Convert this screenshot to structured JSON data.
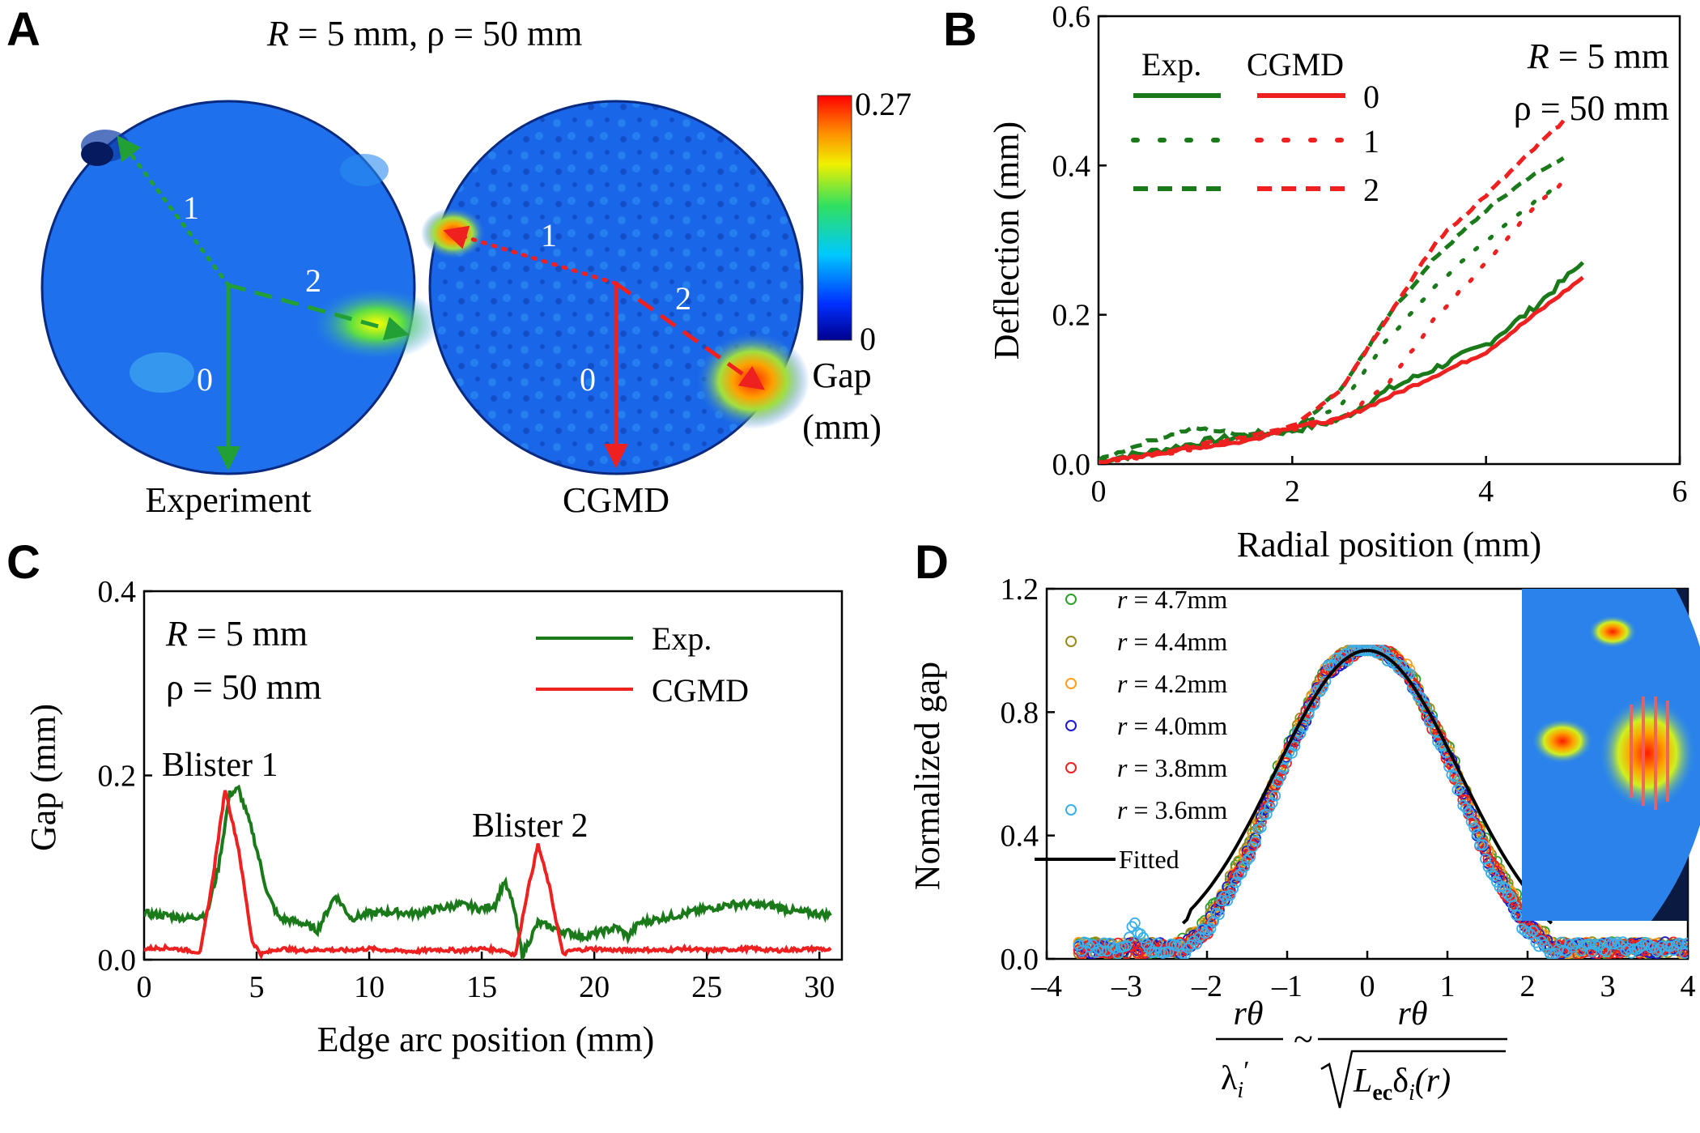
{
  "panel_A": {
    "letter": "A",
    "title": "R = 5 mm, ρ = 50 mm",
    "title_R": "R",
    "title_rest1": " = 5 mm, ",
    "title_rho": "ρ",
    "title_rest2": " = 50 mm",
    "left_caption": "Experiment",
    "right_caption": "CGMD",
    "path_labels": [
      "0",
      "1",
      "2"
    ],
    "colorbar": {
      "max": "0.27",
      "min": "0",
      "label_line1": "Gap",
      "label_line2": "(mm)"
    },
    "colors": {
      "exp": "#1a7a1a",
      "cgmd": "#ee2020"
    }
  },
  "chart_data": [
    {
      "panel": "B",
      "type": "line",
      "xlabel": "Radial position (mm)",
      "ylabel": "Deflection (mm)",
      "xlim": [
        0,
        6
      ],
      "ylim": [
        0,
        0.6
      ],
      "xticks": [
        "0",
        "2",
        "4",
        "6"
      ],
      "yticks": [
        "0.0",
        "0.2",
        "0.4",
        "0.6"
      ],
      "legend_header": [
        "Exp.",
        "CGMD"
      ],
      "legend_index": [
        "0",
        "1",
        "2"
      ],
      "annotation": [
        "R = 5 mm",
        "ρ = 50 mm"
      ],
      "series": [
        {
          "name": "Exp. 0",
          "color": "#1a7a1a",
          "dash": "solid",
          "x": [
            0,
            0.5,
            1.0,
            1.5,
            2.0,
            2.5,
            3.0,
            3.5,
            4.0,
            4.5,
            5.0
          ],
          "y": [
            0.005,
            0.015,
            0.028,
            0.038,
            0.045,
            0.06,
            0.1,
            0.13,
            0.16,
            0.21,
            0.27
          ]
        },
        {
          "name": "Exp. 1",
          "color": "#1a7a1a",
          "dash": "dot",
          "x": [
            0,
            0.5,
            1.0,
            1.5,
            2.0,
            2.5,
            3.0,
            3.5,
            4.0,
            4.4,
            4.7
          ],
          "y": [
            0.005,
            0.015,
            0.025,
            0.035,
            0.045,
            0.08,
            0.17,
            0.24,
            0.3,
            0.34,
            0.37
          ]
        },
        {
          "name": "Exp. 2",
          "color": "#1a7a1a",
          "dash": "dash",
          "x": [
            0,
            0.5,
            1.0,
            1.5,
            2.0,
            2.5,
            3.0,
            3.5,
            4.0,
            4.4,
            4.8
          ],
          "y": [
            0.005,
            0.03,
            0.048,
            0.04,
            0.045,
            0.1,
            0.2,
            0.28,
            0.34,
            0.38,
            0.41
          ]
        },
        {
          "name": "CGMD 0",
          "color": "#ee2020",
          "dash": "solid",
          "x": [
            0,
            0.5,
            1.0,
            1.5,
            2.0,
            2.5,
            3.0,
            3.5,
            4.0,
            4.5,
            5.0
          ],
          "y": [
            0.002,
            0.012,
            0.022,
            0.03,
            0.05,
            0.06,
            0.09,
            0.12,
            0.15,
            0.2,
            0.25
          ]
        },
        {
          "name": "CGMD 1",
          "color": "#ee2020",
          "dash": "dot",
          "x": [
            0,
            0.5,
            1.0,
            1.5,
            2.0,
            2.5,
            3.0,
            3.5,
            4.0,
            4.4,
            4.8
          ],
          "y": [
            0.002,
            0.01,
            0.02,
            0.03,
            0.045,
            0.06,
            0.11,
            0.2,
            0.27,
            0.33,
            0.38
          ]
        },
        {
          "name": "CGMD 2",
          "color": "#ee2020",
          "dash": "dash",
          "x": [
            0,
            0.5,
            1.0,
            1.5,
            2.0,
            2.5,
            3.0,
            3.5,
            4.0,
            4.4,
            4.8
          ],
          "y": [
            0.002,
            0.012,
            0.025,
            0.035,
            0.05,
            0.1,
            0.2,
            0.3,
            0.36,
            0.41,
            0.46
          ]
        }
      ]
    },
    {
      "panel": "C",
      "type": "line",
      "xlabel": "Edge arc position (mm)",
      "ylabel": "Gap (mm)",
      "xlim": [
        0,
        31
      ],
      "ylim": [
        0,
        0.4
      ],
      "xticks": [
        "0",
        "5",
        "10",
        "15",
        "20",
        "25",
        "30"
      ],
      "yticks": [
        "0.0",
        "0.2",
        "0.4"
      ],
      "annotation": [
        "R = 5 mm",
        "ρ = 50 mm"
      ],
      "labels": [
        "Blister 1",
        "Blister 2"
      ],
      "series": [
        {
          "name": "Exp.",
          "color": "#1a7a1a",
          "x": [
            0,
            1,
            2,
            2.8,
            3.3,
            3.8,
            4.2,
            4.8,
            5.5,
            6,
            7,
            7.7,
            8.5,
            9.2,
            10,
            11,
            12,
            13,
            14,
            15,
            15.6,
            16,
            16.4,
            16.8,
            17.5,
            18.5,
            19.5,
            20,
            21,
            21.5,
            22,
            23,
            24,
            25,
            26,
            27,
            28,
            29,
            30,
            30.5
          ],
          "y": [
            0.05,
            0.048,
            0.045,
            0.05,
            0.1,
            0.18,
            0.185,
            0.14,
            0.07,
            0.045,
            0.04,
            0.032,
            0.07,
            0.045,
            0.05,
            0.052,
            0.05,
            0.055,
            0.06,
            0.055,
            0.06,
            0.085,
            0.06,
            0.005,
            0.04,
            0.032,
            0.025,
            0.028,
            0.035,
            0.025,
            0.04,
            0.045,
            0.05,
            0.055,
            0.06,
            0.06,
            0.058,
            0.052,
            0.05,
            0.048
          ]
        },
        {
          "name": "CGMD",
          "color": "#ee2020",
          "x": [
            0,
            1,
            2,
            2.5,
            3.0,
            3.6,
            4.2,
            4.8,
            5.2,
            6,
            7,
            8,
            9,
            10,
            11,
            12,
            13,
            14,
            15,
            16,
            16.5,
            17,
            17.5,
            18,
            18.6,
            19,
            20,
            21,
            22,
            23,
            24,
            25,
            26,
            27,
            28,
            29,
            30,
            30.5
          ],
          "y": [
            0.012,
            0.013,
            0.01,
            0.008,
            0.08,
            0.185,
            0.12,
            0.02,
            0.006,
            0.012,
            0.01,
            0.011,
            0.01,
            0.012,
            0.01,
            0.009,
            0.011,
            0.01,
            0.012,
            0.01,
            0.005,
            0.07,
            0.125,
            0.08,
            0.006,
            0.01,
            0.012,
            0.01,
            0.011,
            0.01,
            0.012,
            0.01,
            0.011,
            0.012,
            0.01,
            0.011,
            0.012,
            0.01
          ]
        }
      ]
    },
    {
      "panel": "D",
      "type": "scatter",
      "ylabel": "Normalized gap",
      "xlim": [
        -4,
        4
      ],
      "ylim": [
        0,
        1.2
      ],
      "xticks": [
        "–4",
        "–3",
        "–2",
        "–1",
        "0",
        "1",
        "2",
        "3",
        "4"
      ],
      "yticks": [
        "0.0",
        "0.4",
        "0.8",
        "1.2"
      ],
      "xlabel_parts": {
        "num": "rθ",
        "den_left": "λ",
        "den_left_sub": "i",
        "den_left_prime": "′",
        "approx": "~",
        "den_right": "L",
        "den_right_sub": "ec",
        "den_right_rest": "δ",
        "den_right_i": "i",
        "den_right_arg": "(r)"
      },
      "series": [
        {
          "name": "r = 4.7mm",
          "r_value": "4.7mm",
          "color": "#2ca02c"
        },
        {
          "name": "r = 4.4mm",
          "r_value": "4.4mm",
          "color": "#9a8a1a"
        },
        {
          "name": "r = 4.2mm",
          "r_value": "4.2mm",
          "color": "#ff9f1a"
        },
        {
          "name": "r = 4.0mm",
          "r_value": "4.0mm",
          "color": "#1a1acc"
        },
        {
          "name": "r = 3.8mm",
          "r_value": "3.8mm",
          "color": "#ee2020"
        },
        {
          "name": "r = 3.6mm",
          "r_value": "3.6mm",
          "color": "#3ab0e8"
        }
      ],
      "fitted": {
        "name": "Fitted",
        "color": "#000000",
        "x": [
          -2.3,
          -2.0,
          -1.5,
          -1.0,
          -0.5,
          0,
          0.5,
          1.0,
          1.5,
          2.0,
          2.3
        ],
        "y": [
          0.0,
          0.07,
          0.3,
          0.63,
          0.9,
          1.0,
          0.9,
          0.63,
          0.3,
          0.07,
          0.0
        ]
      }
    }
  ],
  "panel_letters": {
    "B": "B",
    "C": "C",
    "D": "D"
  }
}
